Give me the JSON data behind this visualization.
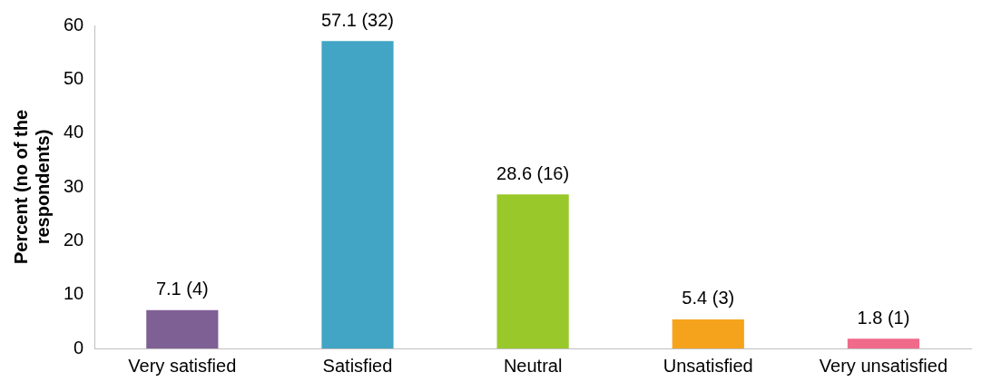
{
  "chart_data": {
    "type": "bar",
    "ylabel": "Percent (no of the respondents)",
    "categories": [
      "Very satisfied",
      "Satisfied",
      "Neutral",
      "Unsatisfied",
      "Very unsatisfied"
    ],
    "values": [
      7.1,
      57.1,
      28.6,
      5.4,
      1.8
    ],
    "colors": [
      "#7f6095",
      "#42a5c5",
      "#99c82a",
      "#f5a31c",
      "#f06a8a"
    ],
    "value_labels": [
      "7.1 (4)",
      "57.1 (32)",
      "28.6 (16)",
      "5.4 (3)",
      "1.8 (1)"
    ],
    "ylim": [
      0,
      60
    ],
    "yticks": [
      0,
      10,
      20,
      30,
      40,
      50,
      60
    ],
    "grid": false,
    "legend": false
  }
}
